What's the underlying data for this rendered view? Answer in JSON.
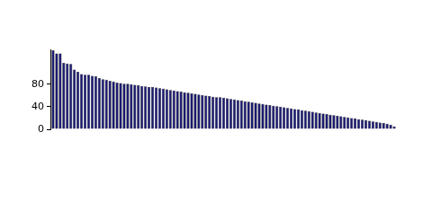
{
  "chart_data": {
    "type": "bar",
    "categories": [
      null,
      null,
      null,
      null,
      null,
      null,
      null,
      null,
      null,
      null,
      null,
      null,
      null,
      null,
      null,
      null,
      null,
      null,
      null,
      null,
      null,
      null,
      null,
      null,
      null,
      null,
      null,
      null,
      null,
      null,
      null,
      null,
      null,
      null,
      null,
      null,
      null,
      null,
      null,
      null,
      null,
      null,
      null,
      null,
      null,
      null,
      null,
      null,
      null,
      null,
      null,
      null,
      null,
      null,
      null,
      null,
      null,
      null,
      null,
      null,
      null,
      null,
      null,
      null,
      null,
      null,
      null,
      null,
      null,
      null,
      null,
      null,
      null,
      null,
      null,
      null,
      null,
      null,
      null,
      null,
      null,
      null,
      null,
      null,
      null,
      null,
      null,
      null,
      null,
      null,
      null,
      null,
      null,
      null,
      null,
      null,
      null
    ],
    "values": [
      141,
      135,
      135,
      118,
      117,
      116,
      106,
      102,
      98,
      97,
      97,
      95,
      94,
      91,
      89,
      88,
      86,
      85,
      83,
      82,
      81,
      81,
      80,
      79,
      78,
      77,
      76,
      75,
      75,
      74,
      73,
      72,
      71,
      70,
      69,
      68,
      67,
      66,
      65,
      64,
      63,
      62,
      61,
      60,
      59,
      58,
      57,
      57,
      56,
      55,
      54,
      53,
      52,
      51,
      50,
      49,
      48,
      47,
      46,
      45,
      44,
      43,
      42,
      41,
      40,
      39,
      38,
      37,
      36,
      35,
      34,
      33,
      32,
      31,
      30,
      29,
      28,
      27,
      26,
      25,
      24,
      23,
      22,
      21,
      20,
      19,
      18,
      17,
      16,
      15,
      14,
      13,
      12,
      11,
      10,
      8,
      5
    ],
    "color": "#191970",
    "ylim": [
      0,
      142
    ],
    "yticks": [
      0,
      40,
      80
    ],
    "grid": false,
    "tick_labels": "y"
  }
}
